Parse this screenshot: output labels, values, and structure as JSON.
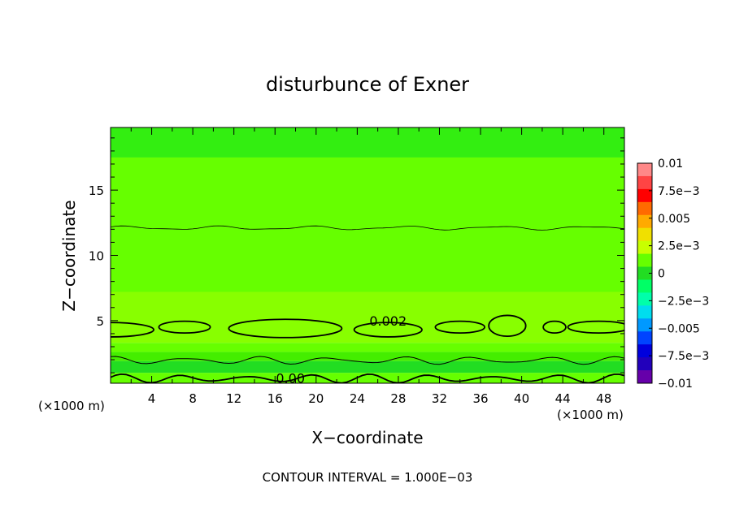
{
  "chart_data": {
    "type": "contour",
    "title": "disturbunce of Exner",
    "xlabel": "X−coordinate",
    "ylabel": "Z−coordinate",
    "x_unit_left": "(×1000 m)",
    "x_unit_right": "(×1000 m)",
    "xlim": [
      0,
      50
    ],
    "ylim": [
      0.2,
      19.8
    ],
    "x_ticks": [
      4,
      8,
      12,
      16,
      20,
      24,
      28,
      32,
      36,
      40,
      44,
      48
    ],
    "y_ticks": [
      5,
      10,
      15
    ],
    "footer": "CONTOUR INTERVAL = 1.000E−03",
    "contour_labels": [
      {
        "text": "0.002",
        "x": 27,
        "z": 5.0
      },
      {
        "text": "0.00",
        "x": 17.5,
        "z": 0.6
      }
    ],
    "colorbar": {
      "labels": [
        "0.01",
        "7.5e−3",
        "0.005",
        "2.5e−3",
        "0",
        "−2.5e−3",
        "−0.005",
        "−7.5e−3",
        "−0.01"
      ],
      "colors": [
        "#ff8888",
        "#ff4444",
        "#ff0000",
        "#ff6a00",
        "#ffaa00",
        "#f0e000",
        "#c8ff00",
        "#66ff00",
        "#22dd22",
        "#00ff66",
        "#00ffaa",
        "#00ddee",
        "#0099ff",
        "#0044ff",
        "#0000dd",
        "#2200bb",
        "#6600aa"
      ]
    },
    "bands": [
      {
        "z": [
          0.2,
          1.0
        ],
        "color": "#66ff00"
      },
      {
        "z": [
          1.0,
          1.9
        ],
        "color": "#22dd22"
      },
      {
        "z": [
          1.9,
          2.6
        ],
        "color": "#44ee00"
      },
      {
        "z": [
          2.6,
          3.3
        ],
        "color": "#66ff00"
      },
      {
        "z": [
          3.3,
          7.2
        ],
        "color": "#88ff00"
      },
      {
        "z": [
          7.2,
          17.5
        ],
        "color": "#66ff00"
      },
      {
        "z": [
          17.5,
          19.8
        ],
        "color": "#33ee11"
      }
    ]
  }
}
